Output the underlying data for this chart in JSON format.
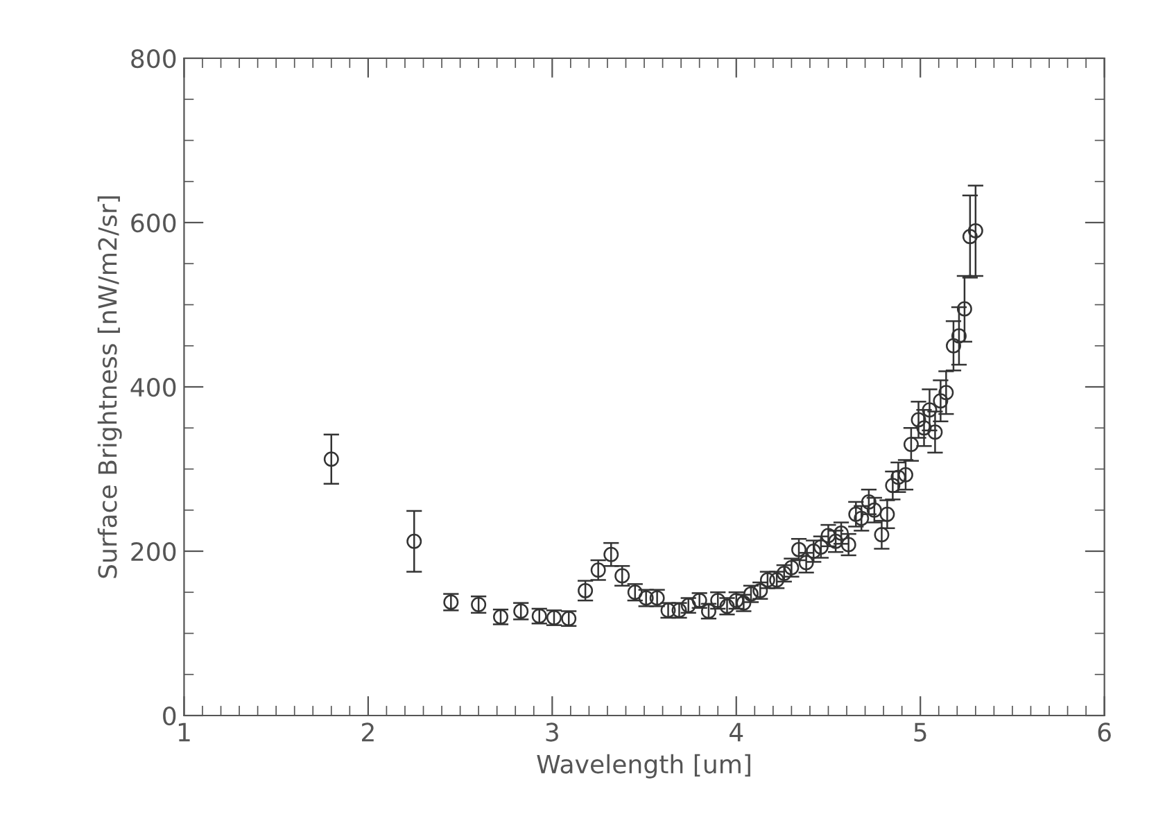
{
  "chart_data": {
    "type": "scatter",
    "xlabel": "Wavelength [um]",
    "ylabel": "Surface Brightness [nW/m2/sr]",
    "x": [
      1.8,
      2.25,
      2.45,
      2.6,
      2.72,
      2.83,
      2.93,
      3.01,
      3.09,
      3.18,
      3.25,
      3.32,
      3.38,
      3.45,
      3.51,
      3.57,
      3.63,
      3.69,
      3.74,
      3.8,
      3.85,
      3.9,
      3.95,
      4.0,
      4.04,
      4.08,
      4.13,
      4.17,
      4.22,
      4.26,
      4.3,
      4.34,
      4.38,
      4.42,
      4.46,
      4.5,
      4.54,
      4.57,
      4.61,
      4.65,
      4.68,
      4.72,
      4.75,
      4.79,
      4.82,
      4.85,
      4.88,
      4.92,
      4.95,
      4.99,
      5.02,
      5.05,
      5.08,
      5.11,
      5.14,
      5.18,
      5.21,
      5.24,
      5.27,
      5.3
    ],
    "values": [
      312,
      212,
      138,
      135,
      120,
      127,
      121,
      119,
      118,
      152,
      177,
      196,
      170,
      150,
      143,
      143,
      128,
      128,
      134,
      140,
      127,
      140,
      133,
      140,
      137,
      148,
      152,
      165,
      165,
      173,
      180,
      202,
      186,
      200,
      205,
      219,
      212,
      222,
      208,
      245,
      240,
      260,
      250,
      220,
      245,
      280,
      290,
      293,
      330,
      360,
      350,
      372,
      345,
      383,
      393,
      450,
      462,
      495,
      583,
      590
    ],
    "errors": [
      30,
      37,
      10,
      10,
      9,
      10,
      9,
      9,
      9,
      12,
      12,
      14,
      12,
      10,
      10,
      10,
      9,
      9,
      9,
      9,
      9,
      10,
      10,
      10,
      10,
      10,
      10,
      10,
      10,
      10,
      11,
      13,
      12,
      13,
      13,
      13,
      13,
      13,
      13,
      15,
      15,
      15,
      15,
      17,
      17,
      17,
      18,
      18,
      20,
      22,
      22,
      25,
      25,
      25,
      26,
      30,
      35,
      40,
      50,
      55
    ],
    "color": "#333333",
    "marker": "circle",
    "grid": false,
    "xlim": [
      1,
      6
    ],
    "ylim": [
      0,
      800
    ],
    "xticks": [
      1,
      2,
      3,
      4,
      5,
      6
    ],
    "yticks": [
      0,
      200,
      400,
      600,
      800
    ]
  }
}
